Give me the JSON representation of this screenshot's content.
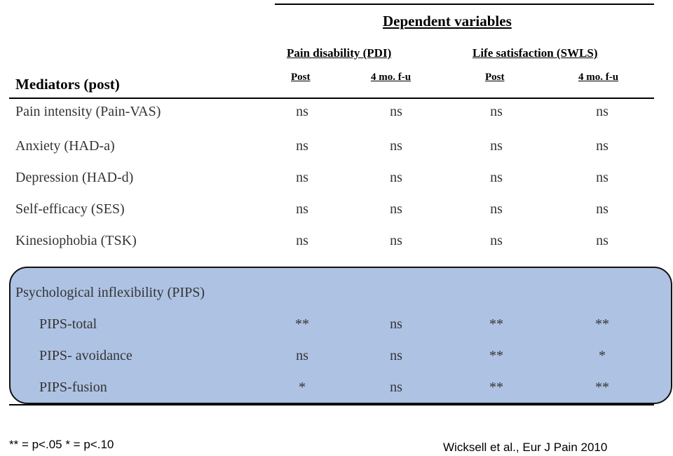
{
  "header": {
    "dependent_title": "Dependent variables",
    "groups": [
      "Pain disability (PDI)",
      "Life satisfaction (SWLS)"
    ],
    "columns": [
      "Post",
      "4 mo. f-u",
      "Post",
      "4 mo. f-u"
    ],
    "mediators_title": "Mediators (post)"
  },
  "rows": [
    {
      "label": "Pain intensity (Pain-VAS)",
      "values": [
        "ns",
        "ns",
        "ns",
        "ns"
      ]
    },
    {
      "label": "Anxiety (HAD-a)",
      "values": [
        "ns",
        "ns",
        "ns",
        "ns"
      ]
    },
    {
      "label": "Depression (HAD-d)",
      "values": [
        "ns",
        "ns",
        "ns",
        "ns"
      ]
    },
    {
      "label": "Self-efficacy (SES)",
      "values": [
        "ns",
        "ns",
        "ns",
        "ns"
      ]
    },
    {
      "label": "Kinesiophobia (TSK)",
      "values": [
        "ns",
        "ns",
        "ns",
        "ns"
      ]
    }
  ],
  "highlight": {
    "title": "Psychological inflexibility (PIPS)",
    "rows": [
      {
        "label": "PIPS-total",
        "values": [
          "**",
          "ns",
          "**",
          "**"
        ]
      },
      {
        "label": "PIPS- avoidance",
        "values": [
          "ns",
          "ns",
          "**",
          "*"
        ]
      },
      {
        "label": "PIPS-fusion",
        "values": [
          "*",
          "ns",
          "**",
          "**"
        ]
      }
    ]
  },
  "footer": {
    "legend": "** = p<.05 * = p<.10",
    "citation": "Wicksell et al., Eur J Pain 2010"
  },
  "colors": {
    "highlight_fill": "#aec2e3"
  }
}
